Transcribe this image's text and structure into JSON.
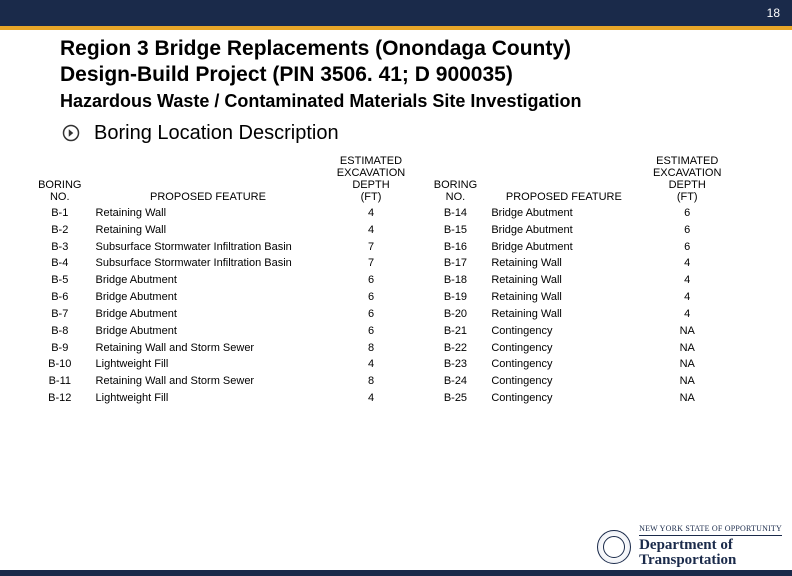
{
  "page_number": "18",
  "header": {
    "title_line1": "Region 3 Bridge Replacements (Onondaga County)",
    "title_line2": "Design-Build Project (PIN 3506. 41; D 900035)",
    "subtitle": "Hazardous Waste / Contaminated Materials Site Investigation"
  },
  "section": {
    "bullet_icon": "arrow-circle",
    "label": "Boring Location Description"
  },
  "table_headers": {
    "col1": "BORING NO.",
    "col2": "PROPOSED FEATURE",
    "col3": "ESTIMATED EXCAVATION DEPTH (FT)"
  },
  "table_left": [
    {
      "no": "B-1",
      "feature": "Retaining Wall",
      "depth": "4"
    },
    {
      "no": "B-2",
      "feature": "Retaining Wall",
      "depth": "4"
    },
    {
      "no": "B-3",
      "feature": "Subsurface Stormwater Infiltration Basin",
      "depth": "7"
    },
    {
      "no": "B-4",
      "feature": "Subsurface Stormwater Infiltration Basin",
      "depth": "7"
    },
    {
      "no": "B-5",
      "feature": "Bridge Abutment",
      "depth": "6"
    },
    {
      "no": "B-6",
      "feature": "Bridge Abutment",
      "depth": "6"
    },
    {
      "no": "B-7",
      "feature": "Bridge Abutment",
      "depth": "6"
    },
    {
      "no": "B-8",
      "feature": "Bridge Abutment",
      "depth": "6"
    },
    {
      "no": "B-9",
      "feature": "Retaining Wall and Storm Sewer",
      "depth": "8"
    },
    {
      "no": "B-10",
      "feature": "Lightweight Fill",
      "depth": "4"
    },
    {
      "no": "B-11",
      "feature": "Retaining Wall and Storm Sewer",
      "depth": "8"
    },
    {
      "no": "B-12",
      "feature": "Lightweight Fill",
      "depth": "4"
    }
  ],
  "table_right": [
    {
      "no": "B-14",
      "feature": "Bridge Abutment",
      "depth": "6"
    },
    {
      "no": "B-15",
      "feature": "Bridge Abutment",
      "depth": "6"
    },
    {
      "no": "B-16",
      "feature": "Bridge Abutment",
      "depth": "6"
    },
    {
      "no": "B-17",
      "feature": "Retaining Wall",
      "depth": "4"
    },
    {
      "no": "B-18",
      "feature": "Retaining Wall",
      "depth": "4"
    },
    {
      "no": "B-19",
      "feature": "Retaining Wall",
      "depth": "4"
    },
    {
      "no": "B-20",
      "feature": "Retaining Wall",
      "depth": "4"
    },
    {
      "no": "B-21",
      "feature": "Contingency",
      "depth": "NA"
    },
    {
      "no": "B-22",
      "feature": "Contingency",
      "depth": "NA"
    },
    {
      "no": "B-23",
      "feature": "Contingency",
      "depth": "NA"
    },
    {
      "no": "B-24",
      "feature": "Contingency",
      "depth": "NA"
    },
    {
      "no": "B-25",
      "feature": "Contingency",
      "depth": "NA"
    }
  ],
  "footer": {
    "line1": "NEW YORK STATE OF OPPORTUNITY",
    "line2": "Department of",
    "line3": "Transportation"
  },
  "colors": {
    "topbar": "#1a2a4a",
    "accent": "#e8a628",
    "text": "#000000",
    "bg": "#ffffff"
  },
  "col_widths_left": {
    "no": 60,
    "feature": 240,
    "depth": 90
  },
  "col_widths_right": {
    "no": 60,
    "feature": 160,
    "depth": 90
  }
}
